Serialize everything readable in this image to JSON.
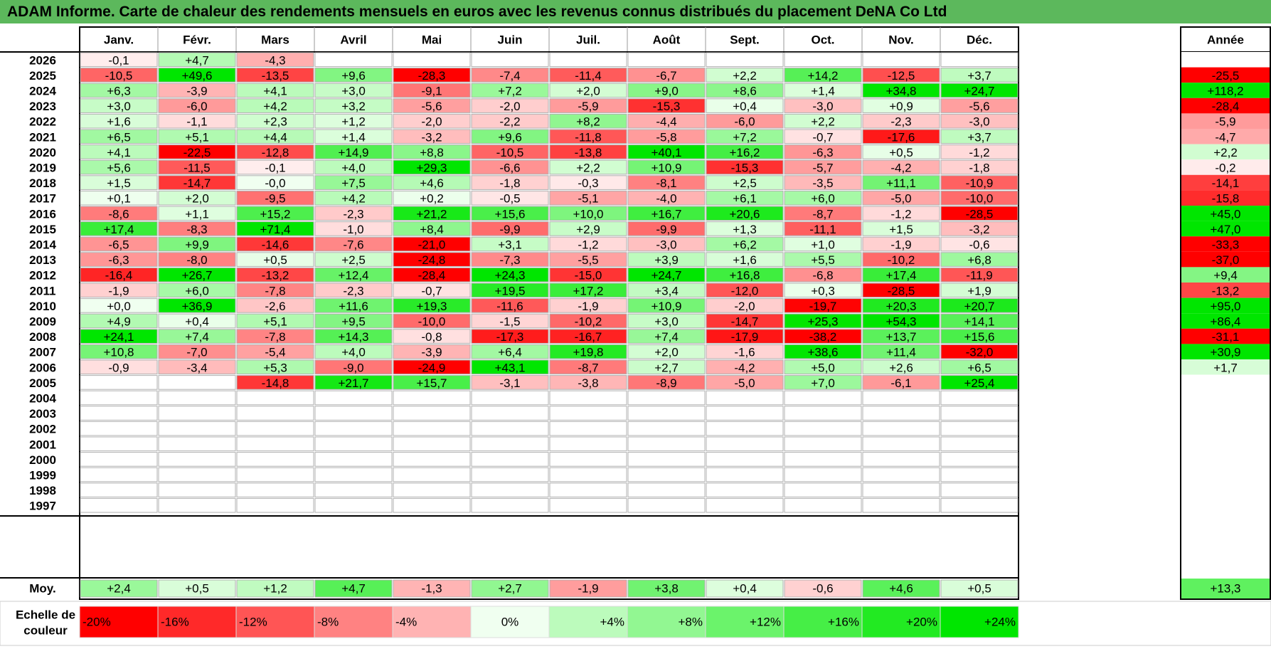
{
  "title": "ADAM Informe. Carte de chaleur des rendements mensuels en euros avec les revenus connus distribués du placement DeNA Co Ltd",
  "chart_data": {
    "type": "heatmap",
    "title": "ADAM Informe. Carte de chaleur des rendements mensuels en euros avec les revenus connus distribués du placement DeNA Co Ltd",
    "months": [
      "Janv.",
      "Févr.",
      "Mars",
      "Avril",
      "Mai",
      "Juin",
      "Juil.",
      "Août",
      "Sept.",
      "Oct.",
      "Nov.",
      "Déc."
    ],
    "year_header": "Année",
    "rows": [
      {
        "year": "2026",
        "values": [
          "-0,1",
          "+4,7",
          "-4,3",
          "",
          "",
          "",
          "",
          "",
          "",
          "",
          "",
          ""
        ],
        "annual": ""
      },
      {
        "year": "2025",
        "values": [
          "-10,5",
          "+49,6",
          "-13,5",
          "+9,6",
          "-28,3",
          "-7,4",
          "-11,4",
          "-6,7",
          "+2,2",
          "+14,2",
          "-12,5",
          "+3,7"
        ],
        "annual": "-25,5"
      },
      {
        "year": "2024",
        "values": [
          "+6,3",
          "-3,9",
          "+4,1",
          "+3,0",
          "-9,1",
          "+7,2",
          "+2,0",
          "+9,0",
          "+8,6",
          "+1,4",
          "+34,8",
          "+24,7"
        ],
        "annual": "+118,2"
      },
      {
        "year": "2023",
        "values": [
          "+3,0",
          "-6,0",
          "+4,2",
          "+3,2",
          "-5,6",
          "-2,0",
          "-5,9",
          "-15,3",
          "+0,4",
          "-3,0",
          "+0,9",
          "-5,6"
        ],
        "annual": "-28,4"
      },
      {
        "year": "2022",
        "values": [
          "+1,6",
          "-1,1",
          "+2,3",
          "+1,2",
          "-2,0",
          "-2,2",
          "+8,2",
          "-4,4",
          "-6,0",
          "+2,2",
          "-2,3",
          "-3,0"
        ],
        "annual": "-5,9"
      },
      {
        "year": "2021",
        "values": [
          "+6,5",
          "+5,1",
          "+4,4",
          "+1,4",
          "-3,2",
          "+9,6",
          "-11,8",
          "-5,8",
          "+7,2",
          "-0,7",
          "-17,6",
          "+3,7"
        ],
        "annual": "-4,7"
      },
      {
        "year": "2020",
        "values": [
          "+4,1",
          "-22,5",
          "-12,8",
          "+14,9",
          "+8,8",
          "-10,5",
          "-13,8",
          "+40,1",
          "+16,2",
          "-6,3",
          "+0,5",
          "-1,2"
        ],
        "annual": "+2,2"
      },
      {
        "year": "2019",
        "values": [
          "+5,6",
          "-11,5",
          "-0,1",
          "+4,0",
          "+29,3",
          "-6,6",
          "+2,2",
          "+10,9",
          "-15,3",
          "-5,7",
          "-4,2",
          "-1,8"
        ],
        "annual": "-0,2"
      },
      {
        "year": "2018",
        "values": [
          "+1,5",
          "-14,7",
          "-0,0",
          "+7,5",
          "+4,6",
          "-1,8",
          "-0,3",
          "-8,1",
          "+2,5",
          "-3,5",
          "+11,1",
          "-10,9"
        ],
        "annual": "-14,1"
      },
      {
        "year": "2017",
        "values": [
          "+0,1",
          "+2,0",
          "-9,5",
          "+4,2",
          "+0,2",
          "-0,5",
          "-5,1",
          "-4,0",
          "+6,1",
          "+6,0",
          "-5,0",
          "-10,0"
        ],
        "annual": "-15,8"
      },
      {
        "year": "2016",
        "values": [
          "-8,6",
          "+1,1",
          "+15,2",
          "-2,3",
          "+21,2",
          "+15,6",
          "+10,0",
          "+16,7",
          "+20,6",
          "-8,7",
          "-1,2",
          "-28,5"
        ],
        "annual": "+45,0"
      },
      {
        "year": "2015",
        "values": [
          "+17,4",
          "-8,3",
          "+71,4",
          "-1,0",
          "+8,4",
          "-9,9",
          "+2,9",
          "-9,9",
          "+1,3",
          "-11,1",
          "+1,5",
          "-3,2"
        ],
        "annual": "+47,0"
      },
      {
        "year": "2014",
        "values": [
          "-6,5",
          "+9,9",
          "-14,6",
          "-7,6",
          "-21,0",
          "+3,1",
          "-1,2",
          "-3,0",
          "+6,2",
          "+1,0",
          "-1,9",
          "-0,6"
        ],
        "annual": "-33,3"
      },
      {
        "year": "2013",
        "values": [
          "-6,3",
          "-8,0",
          "+0,5",
          "+2,5",
          "-24,8",
          "-7,3",
          "-5,5",
          "+3,9",
          "+1,6",
          "+5,5",
          "-10,2",
          "+6,8"
        ],
        "annual": "-37,0"
      },
      {
        "year": "2012",
        "values": [
          "-16,4",
          "+26,7",
          "-13,2",
          "+12,4",
          "-28,4",
          "+24,3",
          "-15,0",
          "+24,7",
          "+16,8",
          "-6,8",
          "+17,4",
          "-11,9"
        ],
        "annual": "+9,4"
      },
      {
        "year": "2011",
        "values": [
          "-1,9",
          "+6,0",
          "-7,8",
          "-2,3",
          "-0,7",
          "+19,5",
          "+17,2",
          "+3,4",
          "-12,0",
          "+0,3",
          "-28,5",
          "+1,9"
        ],
        "annual": "-13,2"
      },
      {
        "year": "2010",
        "values": [
          "+0,0",
          "+36,9",
          "-2,6",
          "+11,6",
          "+19,3",
          "-11,6",
          "-1,9",
          "+10,9",
          "-2,0",
          "-19,7",
          "+20,3",
          "+20,7"
        ],
        "annual": "+95,0"
      },
      {
        "year": "2009",
        "values": [
          "+4,9",
          "+0,4",
          "+5,1",
          "+9,5",
          "-10,0",
          "-1,5",
          "-10,2",
          "+3,0",
          "-14,7",
          "+25,3",
          "+54,3",
          "+14,1"
        ],
        "annual": "+86,4"
      },
      {
        "year": "2008",
        "values": [
          "+24,1",
          "+7,4",
          "-7,8",
          "+14,3",
          "-0,8",
          "-17,3",
          "-16,7",
          "+7,4",
          "-17,9",
          "-38,2",
          "+13,7",
          "+15,6"
        ],
        "annual": "-31,1"
      },
      {
        "year": "2007",
        "values": [
          "+10,8",
          "-7,0",
          "-5,4",
          "+4,0",
          "-3,9",
          "+6,4",
          "+19,8",
          "+2,0",
          "-1,6",
          "+38,6",
          "+11,4",
          "-32,0"
        ],
        "annual": "+30,9"
      },
      {
        "year": "2006",
        "values": [
          "-0,9",
          "-3,4",
          "+5,3",
          "-9,0",
          "-24,9",
          "+43,1",
          "-8,7",
          "+2,7",
          "-4,2",
          "+5,0",
          "+2,6",
          "+6,5"
        ],
        "annual": "+1,7"
      },
      {
        "year": "2005",
        "values": [
          "",
          "",
          "-14,8",
          "+21,7",
          "+15,7",
          "-3,1",
          "-3,8",
          "-8,9",
          "-5,0",
          "+7,0",
          "-6,1",
          "+25,4"
        ],
        "annual": ""
      },
      {
        "year": "2004",
        "values": [
          "",
          "",
          "",
          "",
          "",
          "",
          "",
          "",
          "",
          "",
          "",
          ""
        ],
        "annual": ""
      },
      {
        "year": "2003",
        "values": [
          "",
          "",
          "",
          "",
          "",
          "",
          "",
          "",
          "",
          "",
          "",
          ""
        ],
        "annual": ""
      },
      {
        "year": "2002",
        "values": [
          "",
          "",
          "",
          "",
          "",
          "",
          "",
          "",
          "",
          "",
          "",
          ""
        ],
        "annual": ""
      },
      {
        "year": "2001",
        "values": [
          "",
          "",
          "",
          "",
          "",
          "",
          "",
          "",
          "",
          "",
          "",
          ""
        ],
        "annual": ""
      },
      {
        "year": "2000",
        "values": [
          "",
          "",
          "",
          "",
          "",
          "",
          "",
          "",
          "",
          "",
          "",
          ""
        ],
        "annual": ""
      },
      {
        "year": "1999",
        "values": [
          "",
          "",
          "",
          "",
          "",
          "",
          "",
          "",
          "",
          "",
          "",
          ""
        ],
        "annual": ""
      },
      {
        "year": "1998",
        "values": [
          "",
          "",
          "",
          "",
          "",
          "",
          "",
          "",
          "",
          "",
          "",
          ""
        ],
        "annual": ""
      },
      {
        "year": "1997",
        "values": [
          "",
          "",
          "",
          "",
          "",
          "",
          "",
          "",
          "",
          "",
          "",
          ""
        ],
        "annual": ""
      }
    ],
    "average": {
      "label": "Moy.",
      "values": [
        "+2,4",
        "+0,5",
        "+1,2",
        "+4,7",
        "-1,3",
        "+2,7",
        "-1,9",
        "+3,8",
        "+0,4",
        "-0,6",
        "+4,6",
        "+0,5"
      ],
      "annual": "+13,3"
    },
    "legend": {
      "title_lines": [
        "Echelle de",
        "couleur"
      ],
      "stops": [
        "-20%",
        "-16%",
        "-12%",
        "-8%",
        "-4%",
        "0%",
        "+4%",
        "+8%",
        "+12%",
        "+16%",
        "+20%",
        "+24%"
      ],
      "stop_values": [
        -20,
        -16,
        -12,
        -8,
        -4,
        0,
        4,
        8,
        12,
        16,
        20,
        24
      ]
    },
    "color_scale": {
      "min": -20,
      "max": 24,
      "negative": "#ff0000",
      "positive": "#00e600",
      "neutral": "#ffffff"
    }
  }
}
